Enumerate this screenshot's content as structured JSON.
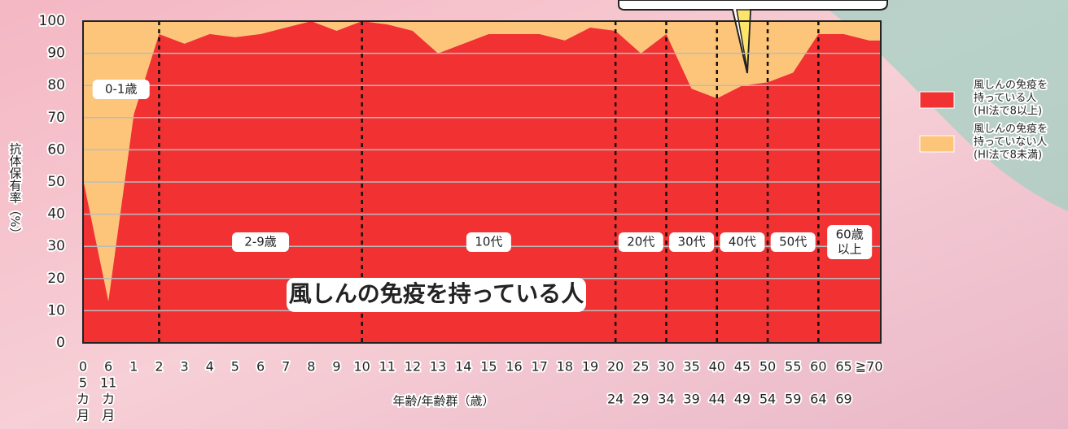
{
  "chart_data": {
    "type": "stacked-area",
    "ylabel": "抗体保有率（%）",
    "xlabel": "年齢/年齢群（歳）",
    "categories": [
      [
        "0",
        "5",
        "カ",
        "月"
      ],
      [
        "6",
        "11",
        "カ",
        "月"
      ],
      [
        "1"
      ],
      [
        "2"
      ],
      [
        "3"
      ],
      [
        "4"
      ],
      [
        "5"
      ],
      [
        "6"
      ],
      [
        "7"
      ],
      [
        "8"
      ],
      [
        "9"
      ],
      [
        "10"
      ],
      [
        "11"
      ],
      [
        "12"
      ],
      [
        "13"
      ],
      [
        "14"
      ],
      [
        "15"
      ],
      [
        "16"
      ],
      [
        "17"
      ],
      [
        "18"
      ],
      [
        "19"
      ],
      [
        "20",
        "24"
      ],
      [
        "25",
        "29"
      ],
      [
        "30",
        "34"
      ],
      [
        "35",
        "39"
      ],
      [
        "40",
        "44"
      ],
      [
        "45",
        "49"
      ],
      [
        "50",
        "54"
      ],
      [
        "55",
        "59"
      ],
      [
        "60",
        "64"
      ],
      [
        "65",
        "69"
      ],
      [
        "≧70"
      ]
    ],
    "series": [
      {
        "name": [
          "風しんの免疫を",
          "持っている人",
          "(HI法で8以上)"
        ],
        "color": "#f23232",
        "values": [
          51,
          13,
          71,
          96,
          93,
          96,
          95,
          96,
          98,
          100,
          97,
          100,
          99,
          97,
          90,
          93,
          96,
          96,
          96,
          94,
          98,
          97,
          90,
          96,
          79,
          76,
          80,
          81,
          84,
          96,
          96,
          94
        ]
      },
      {
        "name": [
          "風しんの免疫を",
          "持っていない人",
          "(HI法で8未満)"
        ],
        "color": "#fcc57a",
        "values": [
          49,
          87,
          29,
          4,
          7,
          4,
          5,
          4,
          2,
          0,
          3,
          0,
          1,
          3,
          10,
          7,
          4,
          4,
          4,
          6,
          2,
          3,
          10,
          4,
          21,
          24,
          20,
          19,
          16,
          4,
          4,
          6
        ]
      }
    ],
    "groups": [
      {
        "label": [
          "0-1歳"
        ],
        "start": 0
      },
      {
        "label": [
          "2-9歳"
        ],
        "start": 3
      },
      {
        "label": [
          "10代"
        ],
        "start": 11
      },
      {
        "label": [
          "20代"
        ],
        "start": 21
      },
      {
        "label": [
          "30代"
        ],
        "start": 23
      },
      {
        "label": [
          "40代"
        ],
        "start": 25
      },
      {
        "label": [
          "50代"
        ],
        "start": 27
      },
      {
        "label": [
          "60歳",
          "以上"
        ],
        "start": 29
      }
    ],
    "annotation": "風しんの免疫を持っている人",
    "ylim": [
      0,
      100
    ],
    "yticks": [
      0,
      10,
      20,
      30,
      40,
      50,
      60,
      70,
      80,
      90,
      100
    ],
    "grid": true
  }
}
